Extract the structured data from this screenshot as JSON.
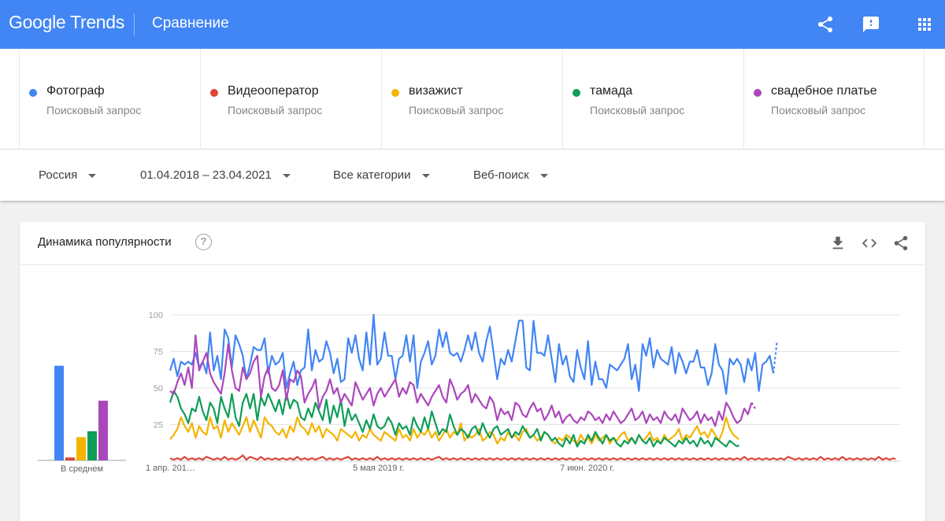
{
  "header": {
    "logo_google": "Google",
    "logo_trends": "Trends",
    "title": "Сравнение",
    "icons": [
      "share-icon",
      "feedback-icon",
      "apps-icon"
    ],
    "bg_color": "#4285f4"
  },
  "terms": [
    {
      "label": "Фотограф",
      "kind": "Поисковый запрос",
      "color": "#4285f4"
    },
    {
      "label": "Видеооператор",
      "kind": "Поисковый запрос",
      "color": "#db4437"
    },
    {
      "label": "визажист",
      "kind": "Поисковый запрос",
      "color": "#f4b400"
    },
    {
      "label": "тамада",
      "kind": "Поисковый запрос",
      "color": "#0f9d58"
    },
    {
      "label": "свадебное платье",
      "kind": "Поисковый запрос",
      "color": "#ab47bc"
    }
  ],
  "filters": {
    "region": "Россия",
    "date_range": "01.04.2018 – 23.04.2021",
    "category": "Все категории",
    "search_type": "Веб-поиск"
  },
  "card": {
    "title": "Динамика популярности",
    "help_symbol": "?",
    "icons": [
      "download-icon",
      "embed-icon",
      "share-icon"
    ]
  },
  "chart_data": [
    {
      "type": "bar",
      "xlabel": "В среднем",
      "categories": [
        "Фотограф",
        "Видеооператор",
        "визажист",
        "тамада",
        "свадебное платье"
      ],
      "values": [
        65,
        2,
        16,
        20,
        41
      ],
      "colors": [
        "#4285f4",
        "#db4437",
        "#f4b400",
        "#0f9d58",
        "#ab47bc"
      ],
      "ylim": [
        0,
        100
      ]
    },
    {
      "type": "line",
      "ylim": [
        0,
        100
      ],
      "yticks": [
        25,
        50,
        75,
        100
      ],
      "x_ticks": [
        {
          "label": "1 апр. 201…",
          "index": 0
        },
        {
          "label": "5 мая 2019 г.",
          "index": 57
        },
        {
          "label": "7 июн. 2020 г.",
          "index": 114
        }
      ],
      "grid": true,
      "partial_last_point": true,
      "series": [
        {
          "name": "Фотограф",
          "color": "#4285f4",
          "values": [
            62,
            70,
            58,
            68,
            66,
            68,
            66,
            74,
            64,
            68,
            60,
            88,
            62,
            72,
            56,
            90,
            84,
            64,
            86,
            80,
            72,
            56,
            66,
            78,
            76,
            76,
            84,
            60,
            72,
            66,
            68,
            74,
            50,
            60,
            68,
            52,
            62,
            64,
            90,
            62,
            76,
            68,
            70,
            82,
            74,
            60,
            70,
            54,
            56,
            84,
            74,
            86,
            70,
            62,
            88,
            66,
            100,
            66,
            70,
            88,
            72,
            72,
            56,
            70,
            72,
            86,
            68,
            86,
            50,
            68,
            74,
            82,
            66,
            72,
            90,
            78,
            88,
            74,
            72,
            74,
            68,
            76,
            86,
            76,
            88,
            74,
            68,
            82,
            92,
            74,
            56,
            70,
            66,
            76,
            68,
            82,
            96,
            96,
            64,
            62,
            96,
            74,
            74,
            72,
            86,
            70,
            54,
            80,
            66,
            72,
            58,
            54,
            76,
            64,
            56,
            82,
            52,
            68,
            56,
            56,
            50,
            66,
            64,
            62,
            66,
            70,
            80,
            56,
            66,
            48,
            80,
            72,
            84,
            64,
            76,
            70,
            68,
            66,
            78,
            60,
            74,
            68,
            60,
            68,
            68,
            76,
            64,
            64,
            52,
            60,
            80,
            66,
            62,
            46,
            70,
            66,
            70,
            66,
            54,
            70,
            62,
            74,
            48,
            66,
            68,
            72,
            60,
            82
          ]
        },
        {
          "name": "Видеооператор",
          "color": "#db4437",
          "values": [
            2,
            1,
            2,
            1,
            3,
            1,
            2,
            1,
            2,
            1,
            3,
            2,
            1,
            2,
            1,
            3,
            1,
            2,
            1,
            2,
            4,
            1,
            3,
            2,
            1,
            3,
            1,
            2,
            1,
            2,
            1,
            2,
            1,
            2,
            1,
            3,
            1,
            2,
            1,
            2,
            1,
            2,
            3,
            1,
            2,
            1,
            2,
            1,
            2,
            3,
            1,
            2,
            1,
            2,
            1,
            2,
            1,
            3,
            1,
            2,
            1,
            2,
            1,
            2,
            1,
            2,
            1,
            2,
            1,
            2,
            1,
            2,
            1,
            2,
            3,
            1,
            2,
            1,
            2,
            1,
            2,
            1,
            2,
            1,
            2,
            1,
            2,
            1,
            2,
            1,
            2,
            1,
            2,
            1,
            2,
            1,
            2,
            1,
            2,
            1,
            2,
            1,
            2,
            1,
            2,
            1,
            2,
            1,
            2,
            1,
            2,
            1,
            2,
            1,
            2,
            1,
            2,
            1,
            2,
            1,
            2,
            1,
            2,
            1,
            2,
            1,
            2,
            1,
            2,
            1,
            2,
            1,
            2,
            1,
            2,
            1,
            2,
            1,
            2,
            1,
            2,
            1,
            2,
            1,
            2,
            1,
            2,
            1,
            2,
            1,
            2,
            1,
            2,
            1,
            2,
            1,
            2,
            1,
            3,
            1,
            2,
            1,
            2,
            1,
            2,
            1,
            2,
            1,
            2,
            1,
            3,
            2,
            1,
            2,
            1,
            2,
            1,
            2,
            1,
            3,
            1,
            2,
            1,
            2,
            1,
            3,
            1,
            2,
            1,
            2,
            1,
            2,
            1,
            2,
            1,
            3,
            1,
            2,
            1,
            2,
            1
          ]
        },
        {
          "name": "визажист",
          "color": "#f4b400",
          "values": [
            15,
            18,
            22,
            30,
            24,
            20,
            26,
            16,
            24,
            20,
            18,
            30,
            22,
            24,
            16,
            28,
            20,
            26,
            22,
            18,
            24,
            30,
            20,
            28,
            22,
            16,
            30,
            26,
            24,
            20,
            18,
            22,
            16,
            24,
            20,
            30,
            24,
            22,
            18,
            26,
            20,
            24,
            16,
            22,
            20,
            18,
            14,
            22,
            20,
            18,
            16,
            20,
            14,
            18,
            16,
            22,
            18,
            16,
            14,
            20,
            18,
            16,
            14,
            22,
            16,
            18,
            14,
            22,
            16,
            20,
            18,
            22,
            16,
            20,
            14,
            18,
            22,
            16,
            20,
            18,
            26,
            14,
            18,
            16,
            18,
            22,
            14,
            16,
            20,
            18,
            12,
            16,
            14,
            20,
            16,
            18,
            14,
            20,
            22,
            16,
            18,
            14,
            16,
            20,
            18,
            14,
            12,
            16,
            14,
            18,
            16,
            14,
            12,
            18,
            14,
            16,
            12,
            18,
            14,
            16,
            18,
            12,
            16,
            14,
            18,
            20,
            14,
            16,
            12,
            18,
            14,
            16,
            20,
            14,
            16,
            12,
            18,
            14,
            16,
            18,
            22,
            14,
            18,
            16,
            20,
            24,
            18,
            20,
            16,
            22,
            18,
            14,
            20,
            30,
            22,
            18,
            16,
            14
          ]
        },
        {
          "name": "тамада",
          "color": "#0f9d58",
          "values": [
            40,
            48,
            44,
            36,
            32,
            26,
            36,
            34,
            44,
            34,
            28,
            40,
            36,
            26,
            44,
            36,
            30,
            46,
            30,
            24,
            40,
            46,
            36,
            46,
            28,
            44,
            38,
            46,
            40,
            34,
            42,
            32,
            46,
            36,
            42,
            40,
            30,
            28,
            36,
            30,
            40,
            34,
            28,
            42,
            26,
            38,
            30,
            42,
            24,
            36,
            28,
            32,
            26,
            20,
            28,
            22,
            32,
            24,
            22,
            24,
            30,
            26,
            18,
            26,
            22,
            24,
            18,
            30,
            24,
            20,
            30,
            22,
            34,
            26,
            18,
            22,
            20,
            32,
            24,
            18,
            22,
            20,
            16,
            22,
            24,
            18,
            26,
            20,
            16,
            22,
            24,
            18,
            20,
            22,
            16,
            20,
            18,
            24,
            20,
            16,
            18,
            22,
            14,
            20,
            18,
            14,
            16,
            12,
            10,
            16,
            12,
            18,
            10,
            14,
            12,
            18,
            14,
            20,
            16,
            12,
            18,
            14,
            16,
            12,
            10,
            14,
            12,
            16,
            12,
            18,
            14,
            12,
            16,
            10,
            14,
            12,
            16,
            14,
            12,
            10,
            14,
            12,
            16,
            12,
            14,
            10,
            16,
            12,
            14,
            10,
            16,
            14,
            12,
            10,
            14,
            12,
            10,
            12
          ]
        },
        {
          "name": "свадебное платье",
          "color": "#ab47bc",
          "values": [
            48,
            46,
            54,
            60,
            52,
            64,
            50,
            86,
            62,
            68,
            74,
            60,
            54,
            50,
            46,
            60,
            80,
            62,
            50,
            48,
            64,
            56,
            60,
            68,
            72,
            44,
            58,
            64,
            50,
            48,
            52,
            62,
            42,
            56,
            54,
            62,
            58,
            40,
            46,
            50,
            56,
            36,
            44,
            48,
            56,
            46,
            50,
            40,
            46,
            42,
            38,
            54,
            48,
            42,
            46,
            50,
            38,
            46,
            50,
            44,
            48,
            52,
            56,
            44,
            50,
            46,
            54,
            52,
            40,
            46,
            42,
            38,
            44,
            48,
            52,
            44,
            40,
            56,
            50,
            42,
            46,
            48,
            52,
            40,
            46,
            42,
            38,
            36,
            44,
            40,
            28,
            36,
            32,
            34,
            28,
            40,
            38,
            32,
            30,
            36,
            40,
            34,
            36,
            28,
            32,
            38,
            30,
            34,
            26,
            30,
            32,
            28,
            26,
            30,
            28,
            34,
            32,
            28,
            30,
            26,
            32,
            28,
            34,
            30,
            26,
            28,
            32,
            36,
            28,
            30,
            34,
            26,
            32,
            28,
            30,
            26,
            34,
            30,
            28,
            32,
            26,
            36,
            32,
            28,
            30,
            34,
            26,
            32,
            28,
            30,
            24,
            34,
            28,
            40,
            36,
            30,
            26,
            28,
            36,
            32,
            40,
            36
          ]
        }
      ]
    }
  ]
}
